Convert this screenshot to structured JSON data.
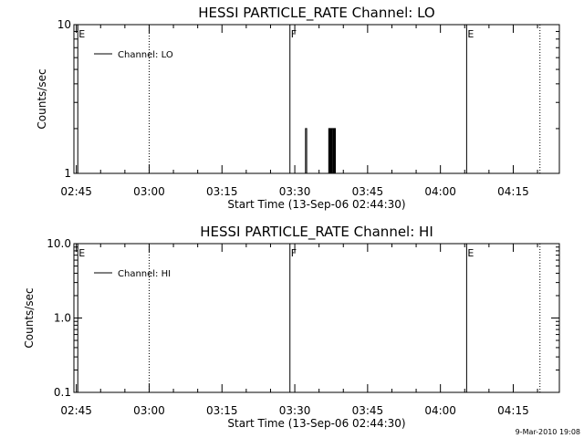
{
  "chart_data": [
    {
      "type": "line",
      "title": "HESSI PARTICLE_RATE Channel: LO",
      "xlabel": "Start Time (13-Sep-06 02:44:30)",
      "ylabel": "Counts/sec",
      "y_scale": "log",
      "ylim": [
        1,
        10
      ],
      "y_ticks": [
        {
          "v": 1,
          "label": "1"
        },
        {
          "v": 10,
          "label": "10"
        }
      ],
      "xlim_min": [
        164.5,
        264.5
      ],
      "x_ticks": [
        {
          "min": 165,
          "label": "02:45"
        },
        {
          "min": 180,
          "label": "03:00"
        },
        {
          "min": 195,
          "label": "03:15"
        },
        {
          "min": 210,
          "label": "03:30"
        },
        {
          "min": 225,
          "label": "03:45"
        },
        {
          "min": 240,
          "label": "04:00"
        },
        {
          "min": 255,
          "label": "04:15"
        }
      ],
      "legend": {
        "placement": "top-left",
        "entries": [
          "Channel: LO"
        ]
      },
      "series": [
        {
          "name": "Channel: LO",
          "points_min_value": [
            [
              211.8,
              1
            ],
            [
              212.15,
              1
            ],
            [
              212.2,
              2
            ],
            [
              212.4,
              2
            ],
            [
              212.45,
              1
            ],
            [
              216.8,
              1
            ],
            [
              217.0,
              2
            ],
            [
              217.15,
              1
            ],
            [
              217.3,
              2
            ],
            [
              217.45,
              1
            ],
            [
              217.6,
              2
            ],
            [
              217.8,
              1
            ],
            [
              217.9,
              2
            ],
            [
              218.05,
              1
            ],
            [
              218.2,
              2
            ],
            [
              218.35,
              1
            ],
            [
              218.45,
              1
            ]
          ]
        }
      ],
      "markers": [
        {
          "min": 165.3,
          "label": "E",
          "style": "solid"
        },
        {
          "min": 180.0,
          "label": "",
          "style": "dotted"
        },
        {
          "min": 209.0,
          "label": "F",
          "style": "solid"
        },
        {
          "min": 245.4,
          "label": "E",
          "style": "solid"
        },
        {
          "min": 260.5,
          "label": "",
          "style": "dotted"
        }
      ]
    },
    {
      "type": "line",
      "title": "HESSI PARTICLE_RATE Channel: HI",
      "xlabel": "Start Time (13-Sep-06 02:44:30)",
      "ylabel": "Counts/sec",
      "y_scale": "log",
      "ylim": [
        0.1,
        10
      ],
      "y_ticks": [
        {
          "v": 0.1,
          "label": "0.1"
        },
        {
          "v": 1,
          "label": "1.0"
        },
        {
          "v": 10,
          "label": "10.0"
        }
      ],
      "xlim_min": [
        164.5,
        264.5
      ],
      "x_ticks": [
        {
          "min": 165,
          "label": "02:45"
        },
        {
          "min": 180,
          "label": "03:00"
        },
        {
          "min": 195,
          "label": "03:15"
        },
        {
          "min": 210,
          "label": "03:30"
        },
        {
          "min": 225,
          "label": "03:45"
        },
        {
          "min": 240,
          "label": "04:00"
        },
        {
          "min": 255,
          "label": "04:15"
        }
      ],
      "legend": {
        "placement": "top-left",
        "entries": [
          "Channel: HI"
        ]
      },
      "series": [
        {
          "name": "Channel: HI",
          "points_min_value": []
        }
      ],
      "markers": [
        {
          "min": 165.3,
          "label": "E",
          "style": "solid"
        },
        {
          "min": 180.0,
          "label": "",
          "style": "dotted"
        },
        {
          "min": 209.0,
          "label": "F",
          "style": "solid"
        },
        {
          "min": 245.4,
          "label": "E",
          "style": "solid"
        },
        {
          "min": 260.5,
          "label": "",
          "style": "dotted"
        }
      ]
    }
  ],
  "footer": {
    "timestamp": "9-Mar-2010 19:08"
  },
  "colors": {
    "background": "#ffffff",
    "ink": "#000000"
  }
}
